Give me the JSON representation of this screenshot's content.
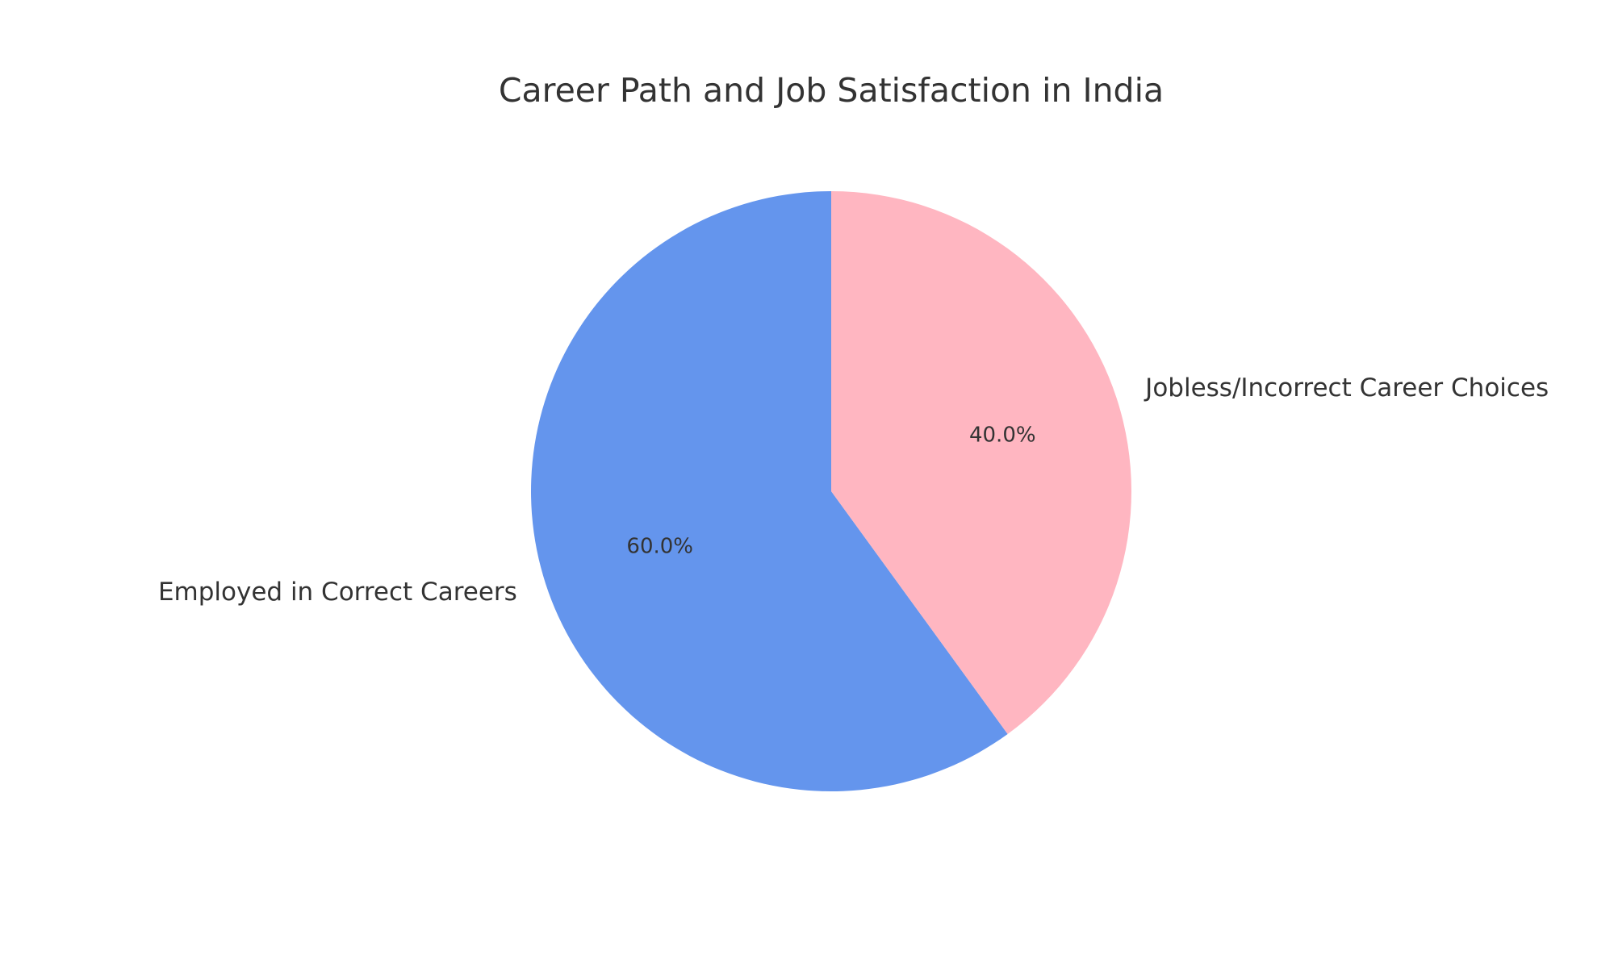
{
  "chart_data": {
    "type": "pie",
    "title": "Career Path and Job Satisfaction in India",
    "start_angle_deg": 90,
    "direction": "counterclockwise",
    "slices": [
      {
        "label": "Employed in Correct Careers",
        "value": 60.0,
        "pct_label": "60.0%",
        "color": "#6495ed"
      },
      {
        "label": "Jobless/Incorrect Career Choices",
        "value": 40.0,
        "pct_label": "40.0%",
        "color": "#ffb6c1"
      }
    ]
  }
}
